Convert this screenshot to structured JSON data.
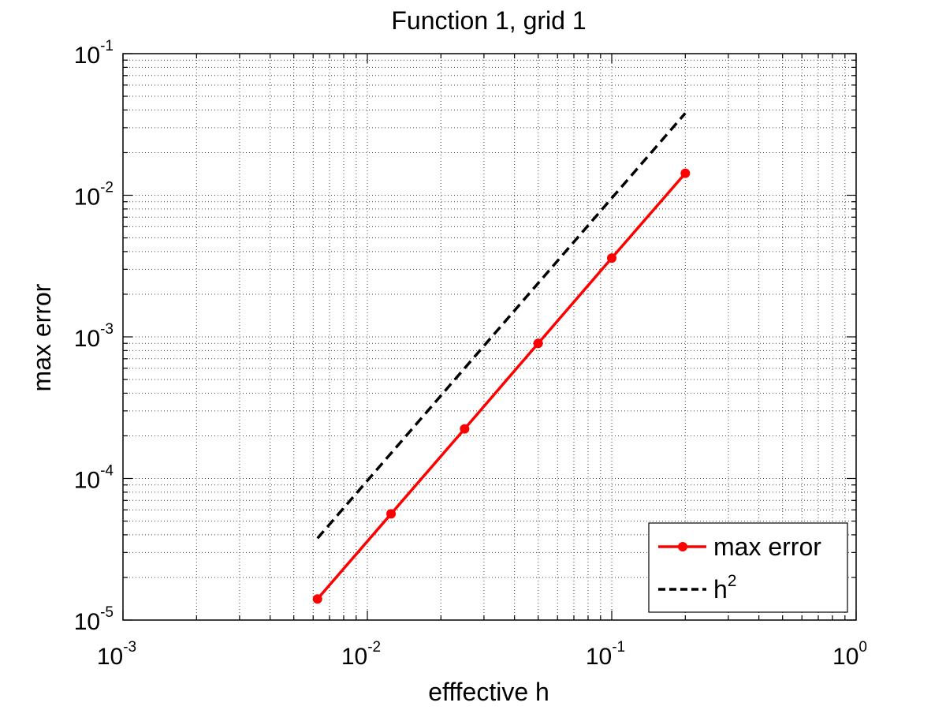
{
  "chart_data": {
    "type": "line",
    "title": "Function 1, grid 1",
    "xlabel": "efffective h",
    "ylabel": "max error",
    "xscale": "log",
    "yscale": "log",
    "xlim": [
      0.001,
      1
    ],
    "ylim": [
      1e-05,
      0.1
    ],
    "grid": "on (major and minor, dotted)",
    "legend_placement": "bottom-right",
    "x_ticks": [
      {
        "base": "10",
        "exp": "-3"
      },
      {
        "base": "10",
        "exp": "-2"
      },
      {
        "base": "10",
        "exp": "-1"
      },
      {
        "base": "10",
        "exp": "0"
      }
    ],
    "y_ticks": [
      {
        "base": "10",
        "exp": "-5"
      },
      {
        "base": "10",
        "exp": "-4"
      },
      {
        "base": "10",
        "exp": "-3"
      },
      {
        "base": "10",
        "exp": "-2"
      },
      {
        "base": "10",
        "exp": "-1"
      }
    ],
    "series": [
      {
        "name": "max error",
        "legend_base": "max error",
        "legend_exp": "",
        "color": "#ff0000",
        "style": "solid",
        "marker": "asterisk",
        "x": [
          0.00625,
          0.0125,
          0.025,
          0.05,
          0.1,
          0.2
        ],
        "y": [
          1.41e-05,
          5.62e-05,
          0.000224,
          0.0009,
          0.0036,
          0.0143
        ]
      },
      {
        "name": "h^2",
        "legend_base": "h",
        "legend_exp": "2",
        "color": "#000000",
        "style": "dashed",
        "marker": "none",
        "x": [
          0.00625,
          0.2
        ],
        "y": [
          3.78e-05,
          0.038
        ]
      }
    ]
  }
}
